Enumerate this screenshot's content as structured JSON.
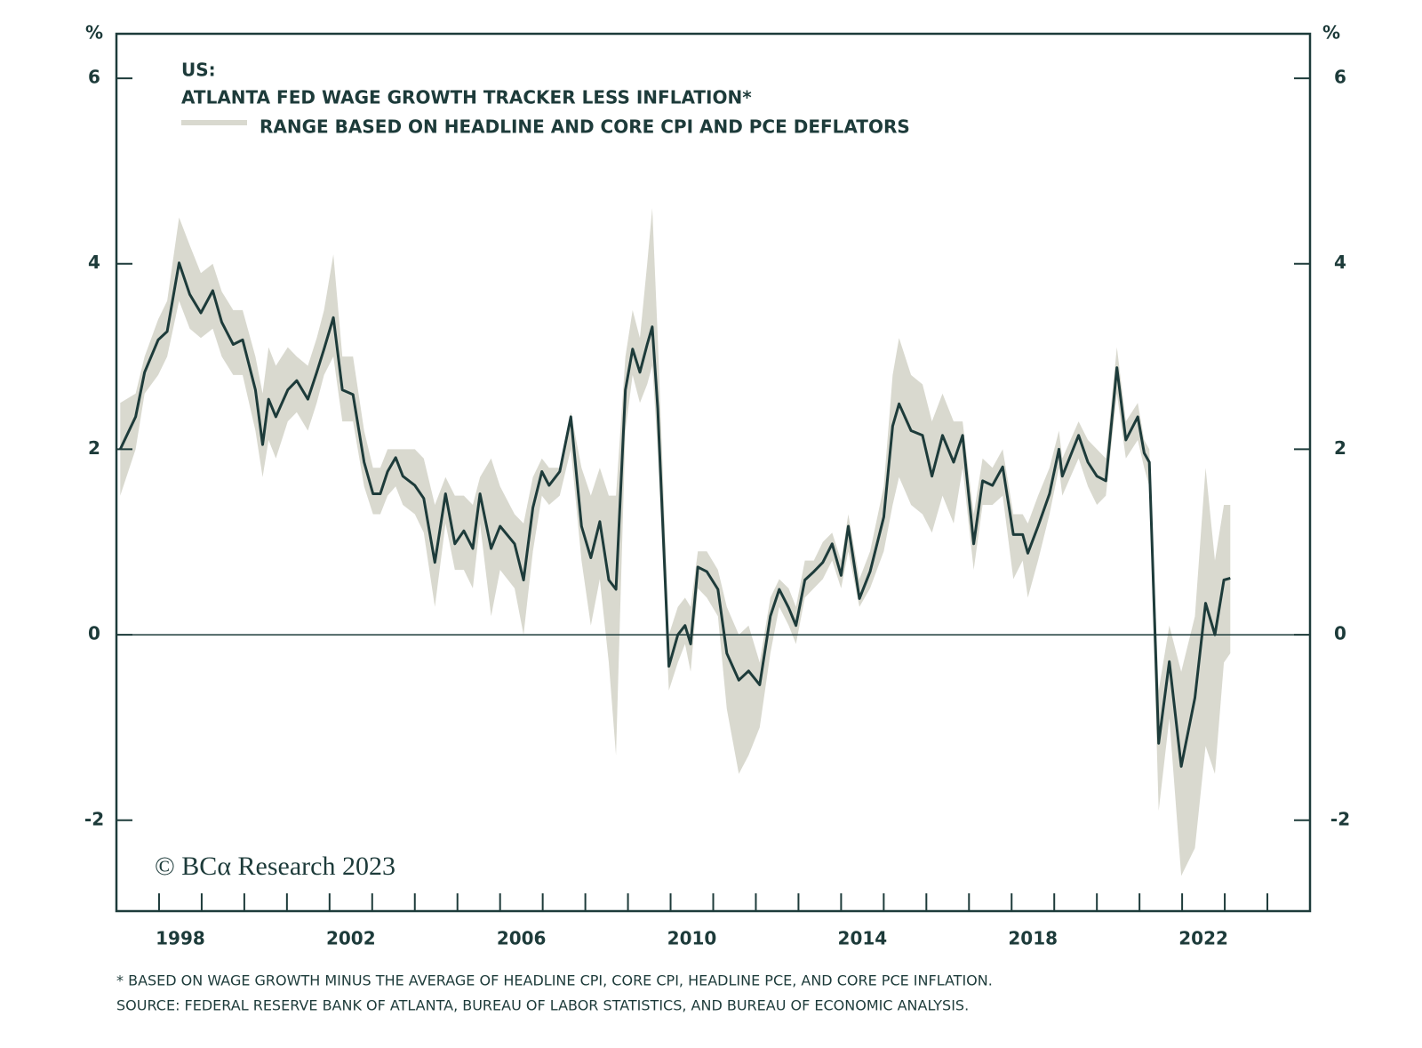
{
  "chart_data": {
    "type": "line",
    "legend_title": "US:",
    "ylabel": "%",
    "y2label": "%",
    "annotation": "© BCα Research 2023",
    "footnotes": [
      "* BASED ON WAGE GROWTH MINUS THE AVERAGE OF HEADLINE CPI, CORE CPI, HEADLINE PCE, AND CORE PCE INFLATION.",
      "SOURCE: FEDERAL RESERVE BANK OF ATLANTA, BUREAU OF LABOR STATISTICS, AND BUREAU OF ECONOMIC ANALYSIS."
    ],
    "xlim": [
      1997,
      2025
    ],
    "xticks": [
      {
        "value": 1998.5,
        "label": "1998"
      },
      {
        "value": 2002.5,
        "label": "2002"
      },
      {
        "value": 2006.5,
        "label": "2006"
      },
      {
        "value": 2010.5,
        "label": "2010"
      },
      {
        "value": 2014.5,
        "label": "2014"
      },
      {
        "value": 2018.5,
        "label": "2018"
      },
      {
        "value": 2022.5,
        "label": "2022"
      }
    ],
    "xminorticks": [
      1998,
      1999,
      2000,
      2001,
      2002,
      2003,
      2004,
      2005,
      2006,
      2007,
      2008,
      2009,
      2010,
      2011,
      2012,
      2013,
      2014,
      2015,
      2016,
      2017,
      2018,
      2019,
      2020,
      2021,
      2022,
      2023,
      2024
    ],
    "ylim": [
      -2.98,
      6.48
    ],
    "yticks": [
      -2,
      0,
      2,
      4,
      6
    ],
    "y2lim": [
      -2.98,
      6.48
    ],
    "y2ticks": [
      -2,
      0,
      2,
      4,
      6
    ],
    "reference_line": 0,
    "x": [
      1997.09,
      1997.45,
      1997.66,
      1997.98,
      1998.19,
      1998.47,
      1998.72,
      1998.98,
      1999.26,
      1999.47,
      1999.74,
      1999.96,
      2000.26,
      2000.43,
      2000.57,
      2000.74,
      2001.02,
      2001.23,
      2001.49,
      2001.7,
      2001.87,
      2002.09,
      2002.3,
      2002.55,
      2002.81,
      2003.02,
      2003.19,
      2003.36,
      2003.55,
      2003.72,
      2004.0,
      2004.21,
      2004.47,
      2004.72,
      2004.94,
      2005.15,
      2005.36,
      2005.53,
      2005.79,
      2006.0,
      2006.34,
      2006.55,
      2006.77,
      2006.98,
      2007.15,
      2007.4,
      2007.66,
      2007.91,
      2008.13,
      2008.34,
      2008.55,
      2008.72,
      2008.94,
      2009.11,
      2009.28,
      2009.45,
      2009.57,
      2009.7,
      2009.96,
      2010.17,
      2010.34,
      2010.47,
      2010.64,
      2010.85,
      2011.11,
      2011.32,
      2011.6,
      2011.83,
      2012.09,
      2012.34,
      2012.55,
      2012.77,
      2012.94,
      2013.15,
      2013.36,
      2013.57,
      2013.79,
      2014.0,
      2014.17,
      2014.43,
      2014.68,
      2015.0,
      2015.21,
      2015.36,
      2015.64,
      2015.91,
      2016.13,
      2016.38,
      2016.64,
      2016.85,
      2017.11,
      2017.32,
      2017.55,
      2017.79,
      2018.04,
      2018.26,
      2018.38,
      2018.62,
      2018.89,
      2019.11,
      2019.19,
      2019.57,
      2019.79,
      2020.0,
      2020.21,
      2020.47,
      2020.68,
      2020.96,
      2021.11,
      2021.23,
      2021.45,
      2021.7,
      2021.98,
      2022.3,
      2022.55,
      2022.77,
      2022.98,
      2023.13
    ],
    "band": {
      "name": "RANGE BASED ON HEADLINE AND CORE CPI AND PCE DEFLATORS",
      "color": "#d9d9cf",
      "low": [
        1.5,
        2.0,
        2.6,
        2.8,
        3.0,
        3.6,
        3.3,
        3.2,
        3.3,
        3.0,
        2.8,
        2.8,
        2.2,
        1.7,
        2.1,
        1.9,
        2.3,
        2.4,
        2.2,
        2.5,
        2.8,
        3.0,
        2.3,
        2.3,
        1.6,
        1.3,
        1.3,
        1.5,
        1.6,
        1.4,
        1.3,
        1.1,
        0.3,
        1.2,
        0.7,
        0.7,
        0.5,
        1.2,
        0.2,
        0.7,
        0.5,
        0.0,
        0.9,
        1.5,
        1.4,
        1.5,
        2.0,
        0.8,
        0.1,
        0.6,
        -0.3,
        -1.3,
        2.2,
        2.8,
        2.5,
        2.7,
        2.9,
        2.0,
        -0.6,
        -0.3,
        -0.1,
        -0.4,
        0.5,
        0.4,
        0.2,
        -0.8,
        -1.5,
        -1.3,
        -1.0,
        -0.2,
        0.3,
        0.1,
        -0.1,
        0.4,
        0.5,
        0.6,
        0.8,
        0.5,
        0.9,
        0.3,
        0.5,
        0.9,
        1.4,
        1.7,
        1.4,
        1.3,
        1.1,
        1.5,
        1.2,
        1.8,
        0.7,
        1.4,
        1.4,
        1.5,
        0.6,
        0.8,
        0.4,
        0.8,
        1.3,
        1.8,
        1.5,
        1.9,
        1.6,
        1.4,
        1.5,
        2.6,
        1.9,
        2.1,
        1.8,
        1.6,
        -1.9,
        -0.9,
        -2.6,
        -2.3,
        -1.2,
        -1.5,
        -0.3,
        -0.2
      ],
      "high": [
        2.5,
        2.6,
        3.0,
        3.4,
        3.6,
        4.5,
        4.2,
        3.9,
        4.0,
        3.7,
        3.5,
        3.5,
        3.0,
        2.6,
        3.1,
        2.9,
        3.1,
        3.0,
        2.9,
        3.2,
        3.5,
        4.1,
        3.0,
        3.0,
        2.2,
        1.8,
        1.8,
        2.0,
        2.0,
        2.0,
        2.0,
        1.9,
        1.4,
        1.7,
        1.5,
        1.5,
        1.4,
        1.7,
        1.9,
        1.6,
        1.3,
        1.2,
        1.7,
        1.9,
        1.8,
        1.8,
        2.4,
        1.8,
        1.5,
        1.8,
        1.5,
        1.5,
        3.0,
        3.5,
        3.2,
        4.0,
        4.6,
        3.2,
        0.0,
        0.3,
        0.4,
        0.3,
        0.9,
        0.9,
        0.7,
        0.3,
        0.0,
        0.1,
        -0.3,
        0.4,
        0.6,
        0.5,
        0.3,
        0.8,
        0.8,
        1.0,
        1.1,
        0.8,
        1.3,
        0.6,
        0.9,
        1.6,
        2.8,
        3.2,
        2.8,
        2.7,
        2.3,
        2.6,
        2.3,
        2.3,
        1.3,
        1.9,
        1.8,
        2.0,
        1.3,
        1.3,
        1.2,
        1.5,
        1.8,
        2.2,
        1.9,
        2.3,
        2.1,
        2.0,
        1.9,
        3.1,
        2.3,
        2.5,
        2.1,
        2.0,
        -0.6,
        0.1,
        -0.4,
        0.2,
        1.8,
        0.8,
        1.4,
        1.4
      ]
    },
    "series": [
      {
        "name": "ATLANTA FED WAGE GROWTH TRACKER LESS INFLATION*",
        "color": "#1d3b3a",
        "values": [
          2.0,
          2.35,
          2.83,
          3.18,
          3.27,
          4.01,
          3.67,
          3.47,
          3.71,
          3.37,
          3.13,
          3.18,
          2.64,
          2.05,
          2.54,
          2.35,
          2.64,
          2.74,
          2.54,
          2.83,
          3.08,
          3.42,
          2.64,
          2.59,
          1.86,
          1.52,
          1.52,
          1.76,
          1.91,
          1.71,
          1.61,
          1.47,
          0.78,
          1.52,
          0.98,
          1.12,
          0.93,
          1.52,
          0.93,
          1.17,
          0.98,
          0.59,
          1.37,
          1.76,
          1.61,
          1.76,
          2.35,
          1.17,
          0.83,
          1.22,
          0.59,
          0.49,
          2.64,
          3.08,
          2.83,
          3.13,
          3.32,
          2.44,
          -0.34,
          0.0,
          0.1,
          -0.1,
          0.73,
          0.68,
          0.49,
          -0.2,
          -0.49,
          -0.39,
          -0.54,
          0.2,
          0.49,
          0.29,
          0.1,
          0.59,
          0.68,
          0.78,
          0.98,
          0.64,
          1.17,
          0.39,
          0.68,
          1.27,
          2.25,
          2.49,
          2.2,
          2.15,
          1.71,
          2.15,
          1.86,
          2.15,
          0.98,
          1.66,
          1.61,
          1.81,
          1.08,
          1.08,
          0.88,
          1.17,
          1.52,
          2.0,
          1.71,
          2.15,
          1.86,
          1.71,
          1.66,
          2.88,
          2.1,
          2.35,
          1.96,
          1.86,
          -1.17,
          -0.29,
          -1.42,
          -0.68,
          0.34,
          0.0,
          0.59,
          0.61
        ]
      }
    ]
  }
}
